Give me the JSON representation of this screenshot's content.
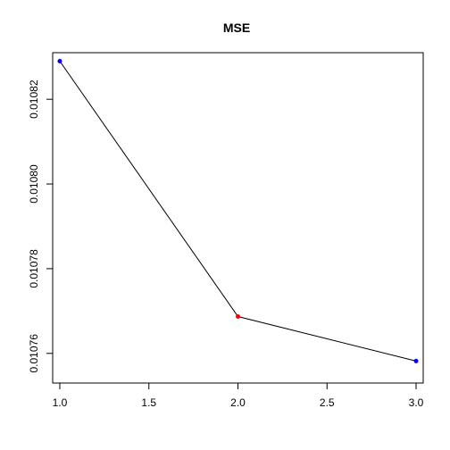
{
  "chart_data": {
    "type": "line",
    "title": "MSE",
    "xlabel": "",
    "ylabel": "",
    "xlim": [
      0.96,
      3.04
    ],
    "ylim": [
      0.010753,
      0.010831
    ],
    "x_ticks": [
      1.0,
      1.5,
      2.0,
      2.5,
      3.0
    ],
    "x_tick_labels": [
      "1.0",
      "1.5",
      "2.0",
      "2.5",
      "3.0"
    ],
    "y_ticks": [
      0.01076,
      0.01078,
      0.0108,
      0.01082
    ],
    "y_tick_labels": [
      "0.01076",
      "0.01078",
      "0.01080",
      "0.01082"
    ],
    "grid": false,
    "line_color": "#000000",
    "point_colors": [
      "#0000ff",
      "#ff0000",
      "#0000ff"
    ],
    "series": [
      {
        "x": [
          1.0,
          2.0,
          3.0
        ],
        "values": [
          0.010829,
          0.0107687,
          0.0107582
        ]
      }
    ]
  }
}
